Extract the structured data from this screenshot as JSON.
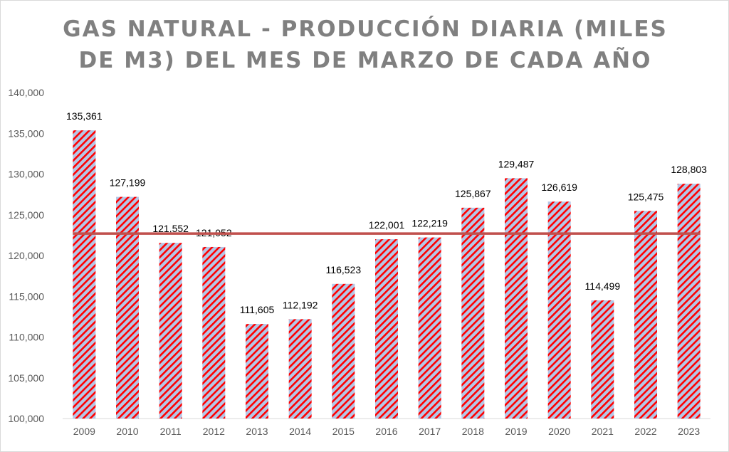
{
  "chart_data": {
    "type": "bar",
    "title": "GAS NATURAL - PRODUCCIÓN DIARIA (MILES DE M3) DEL MES DE MARZO DE CADA AÑO",
    "xlabel": "",
    "ylabel": "",
    "categories": [
      "2009",
      "2010",
      "2011",
      "2012",
      "2013",
      "2014",
      "2015",
      "2016",
      "2017",
      "2018",
      "2019",
      "2020",
      "2021",
      "2022",
      "2023"
    ],
    "values": [
      135361,
      127199,
      121552,
      121052,
      111605,
      112192,
      116523,
      122001,
      122219,
      125867,
      129487,
      126619,
      114499,
      125475,
      128803
    ],
    "value_labels": [
      "135,361",
      "127,199",
      "121,552",
      "121,052",
      "111,605",
      "112,192",
      "116,523",
      "122,001",
      "122,219",
      "125,867",
      "129,487",
      "126,619",
      "114,499",
      "125,475",
      "128,803"
    ],
    "ylim": [
      100000,
      140000
    ],
    "yticks": [
      100000,
      105000,
      110000,
      115000,
      120000,
      125000,
      130000,
      135000,
      140000
    ],
    "ytick_labels": [
      "100,000",
      "105,000",
      "110,000",
      "115,000",
      "120,000",
      "125,000",
      "130,000",
      "135,000",
      "140,000"
    ],
    "average_line": 122697,
    "grid": false,
    "colors": {
      "bar_fill": "#b4c7e7",
      "bar_stripe": "#ff0000",
      "average_line": "#c0504d",
      "axis": "#d9d9d9"
    }
  }
}
